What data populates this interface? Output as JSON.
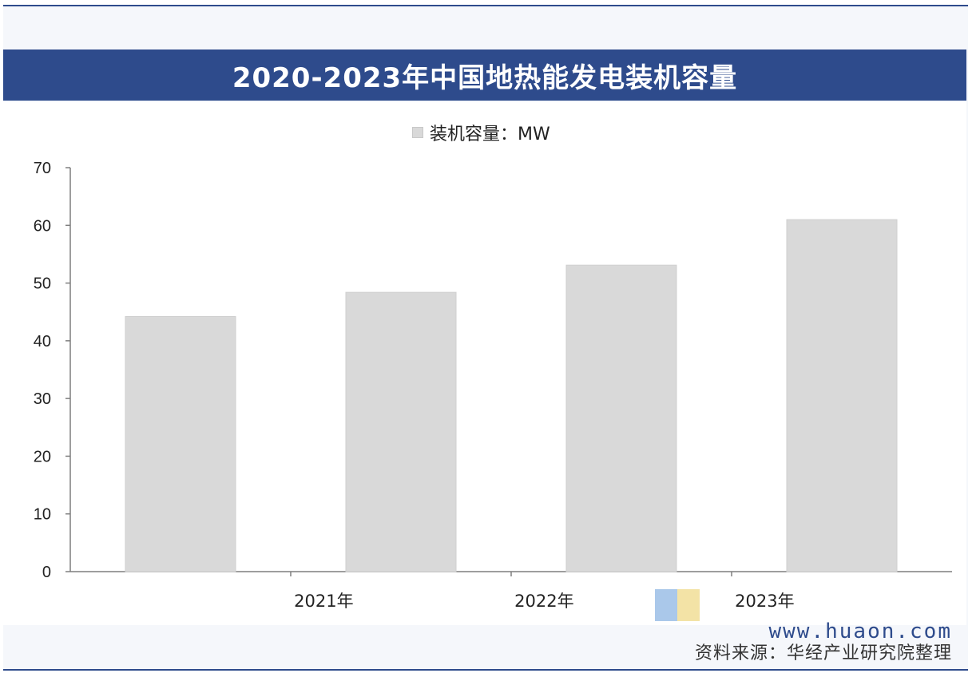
{
  "title": "2020-2023年中国地热能发电装机容量",
  "legend_label": "装机容量：MW",
  "watermark_text": "华经产业研究院",
  "site": "www.huaon.com",
  "source": "资料来源：华经产业研究院整理",
  "colors": {
    "accent": "#2e4b8c",
    "bar": "#d9d9d9"
  },
  "chart_data": {
    "type": "bar",
    "categories": [
      "",
      "2021年",
      "2022年",
      "2023年"
    ],
    "series": [
      {
        "name": "装机容量：MW",
        "values": [
          44.2,
          48.4,
          53.1,
          61.0
        ]
      }
    ],
    "y_ticks": [
      0,
      10,
      20,
      30,
      40,
      50,
      60,
      70
    ],
    "ylim": [
      0,
      70
    ],
    "grid": false,
    "legend_position": "top-center"
  }
}
